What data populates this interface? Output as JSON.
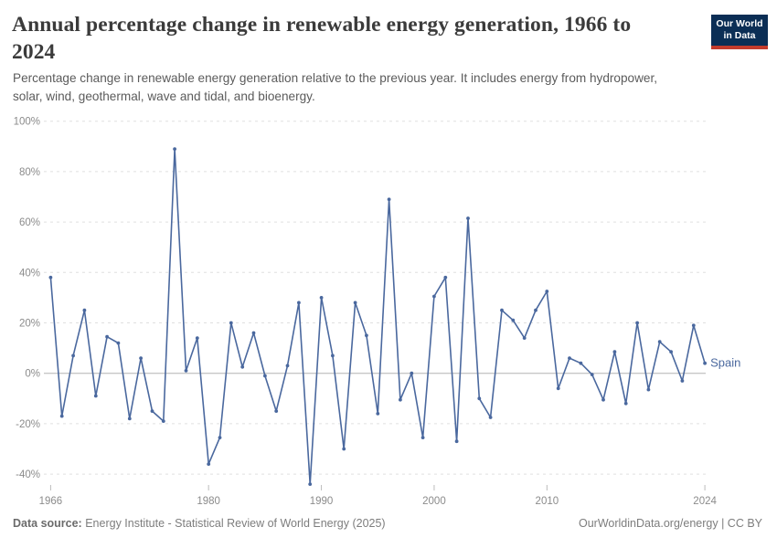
{
  "header": {
    "title": "Annual percentage change in renewable energy generation, 1966 to 2024",
    "title_line1": "Annual percentage change in renewable energy generation, 1966 to",
    "title_line2": "2024",
    "logo_line1": "Our World",
    "logo_line2": "in Data",
    "logo_bg_color": "#0b2e55",
    "logo_stripe_color": "#c43b2c"
  },
  "subtitle": {
    "full": "Percentage change in renewable energy generation relative to the previous year. It includes energy from hydropower, solar, wind, geothermal, wave and tidal, and bioenergy.",
    "line1": "Percentage change in renewable energy generation relative to the previous year. It includes energy from hydropower,",
    "line2": "solar, wind, geothermal, wave and tidal, and bioenergy."
  },
  "footer": {
    "source_label": "Data source:",
    "source_text": " Energy Institute - Statistical Review of World Energy (2025)",
    "right_text": "OurWorldinData.org/energy | CC BY"
  },
  "chart_data": {
    "type": "line",
    "series_label": "Spain",
    "line_color": "#4a689e",
    "grid_color": "#e0e0e0",
    "zero_line_color": "#c6c6c6",
    "tick_mark_color": "#bcbcbc",
    "axis_label_color": "#8b8b8b",
    "xlim": [
      1966,
      2024
    ],
    "ylim": [
      -45,
      100
    ],
    "grid": true,
    "legend_position": "end-of-line",
    "ytick_suffix": "%",
    "yticks": [
      100,
      80,
      60,
      40,
      20,
      0,
      -20,
      -40
    ],
    "xticks": [
      1966,
      1980,
      1990,
      2000,
      2010,
      2024
    ],
    "x": [
      1966,
      1967,
      1968,
      1969,
      1970,
      1971,
      1972,
      1973,
      1974,
      1975,
      1976,
      1977,
      1978,
      1979,
      1980,
      1981,
      1982,
      1983,
      1984,
      1985,
      1986,
      1987,
      1988,
      1989,
      1990,
      1991,
      1992,
      1993,
      1994,
      1995,
      1996,
      1997,
      1998,
      1999,
      2000,
      2001,
      2002,
      2003,
      2004,
      2005,
      2006,
      2007,
      2008,
      2009,
      2010,
      2011,
      2012,
      2013,
      2014,
      2015,
      2016,
      2017,
      2018,
      2019,
      2020,
      2021,
      2022,
      2023,
      2024
    ],
    "values": [
      38,
      -17,
      7,
      25,
      -9,
      14.5,
      12,
      -18,
      6,
      -15,
      -19,
      89,
      1,
      14,
      -36,
      -25.5,
      20,
      2.5,
      16,
      -1,
      -15,
      3,
      28,
      -44,
      30,
      7,
      -30,
      28,
      15,
      -16,
      69,
      -10.5,
      0,
      -25.5,
      30.5,
      38,
      -27,
      61.5,
      -10,
      -17.5,
      25,
      21,
      14,
      25,
      32.5,
      -6,
      6,
      4,
      -0.5,
      -10.5,
      8.5,
      -12,
      20,
      -6.5,
      12.5,
      8.5,
      -3,
      19,
      4
    ]
  }
}
